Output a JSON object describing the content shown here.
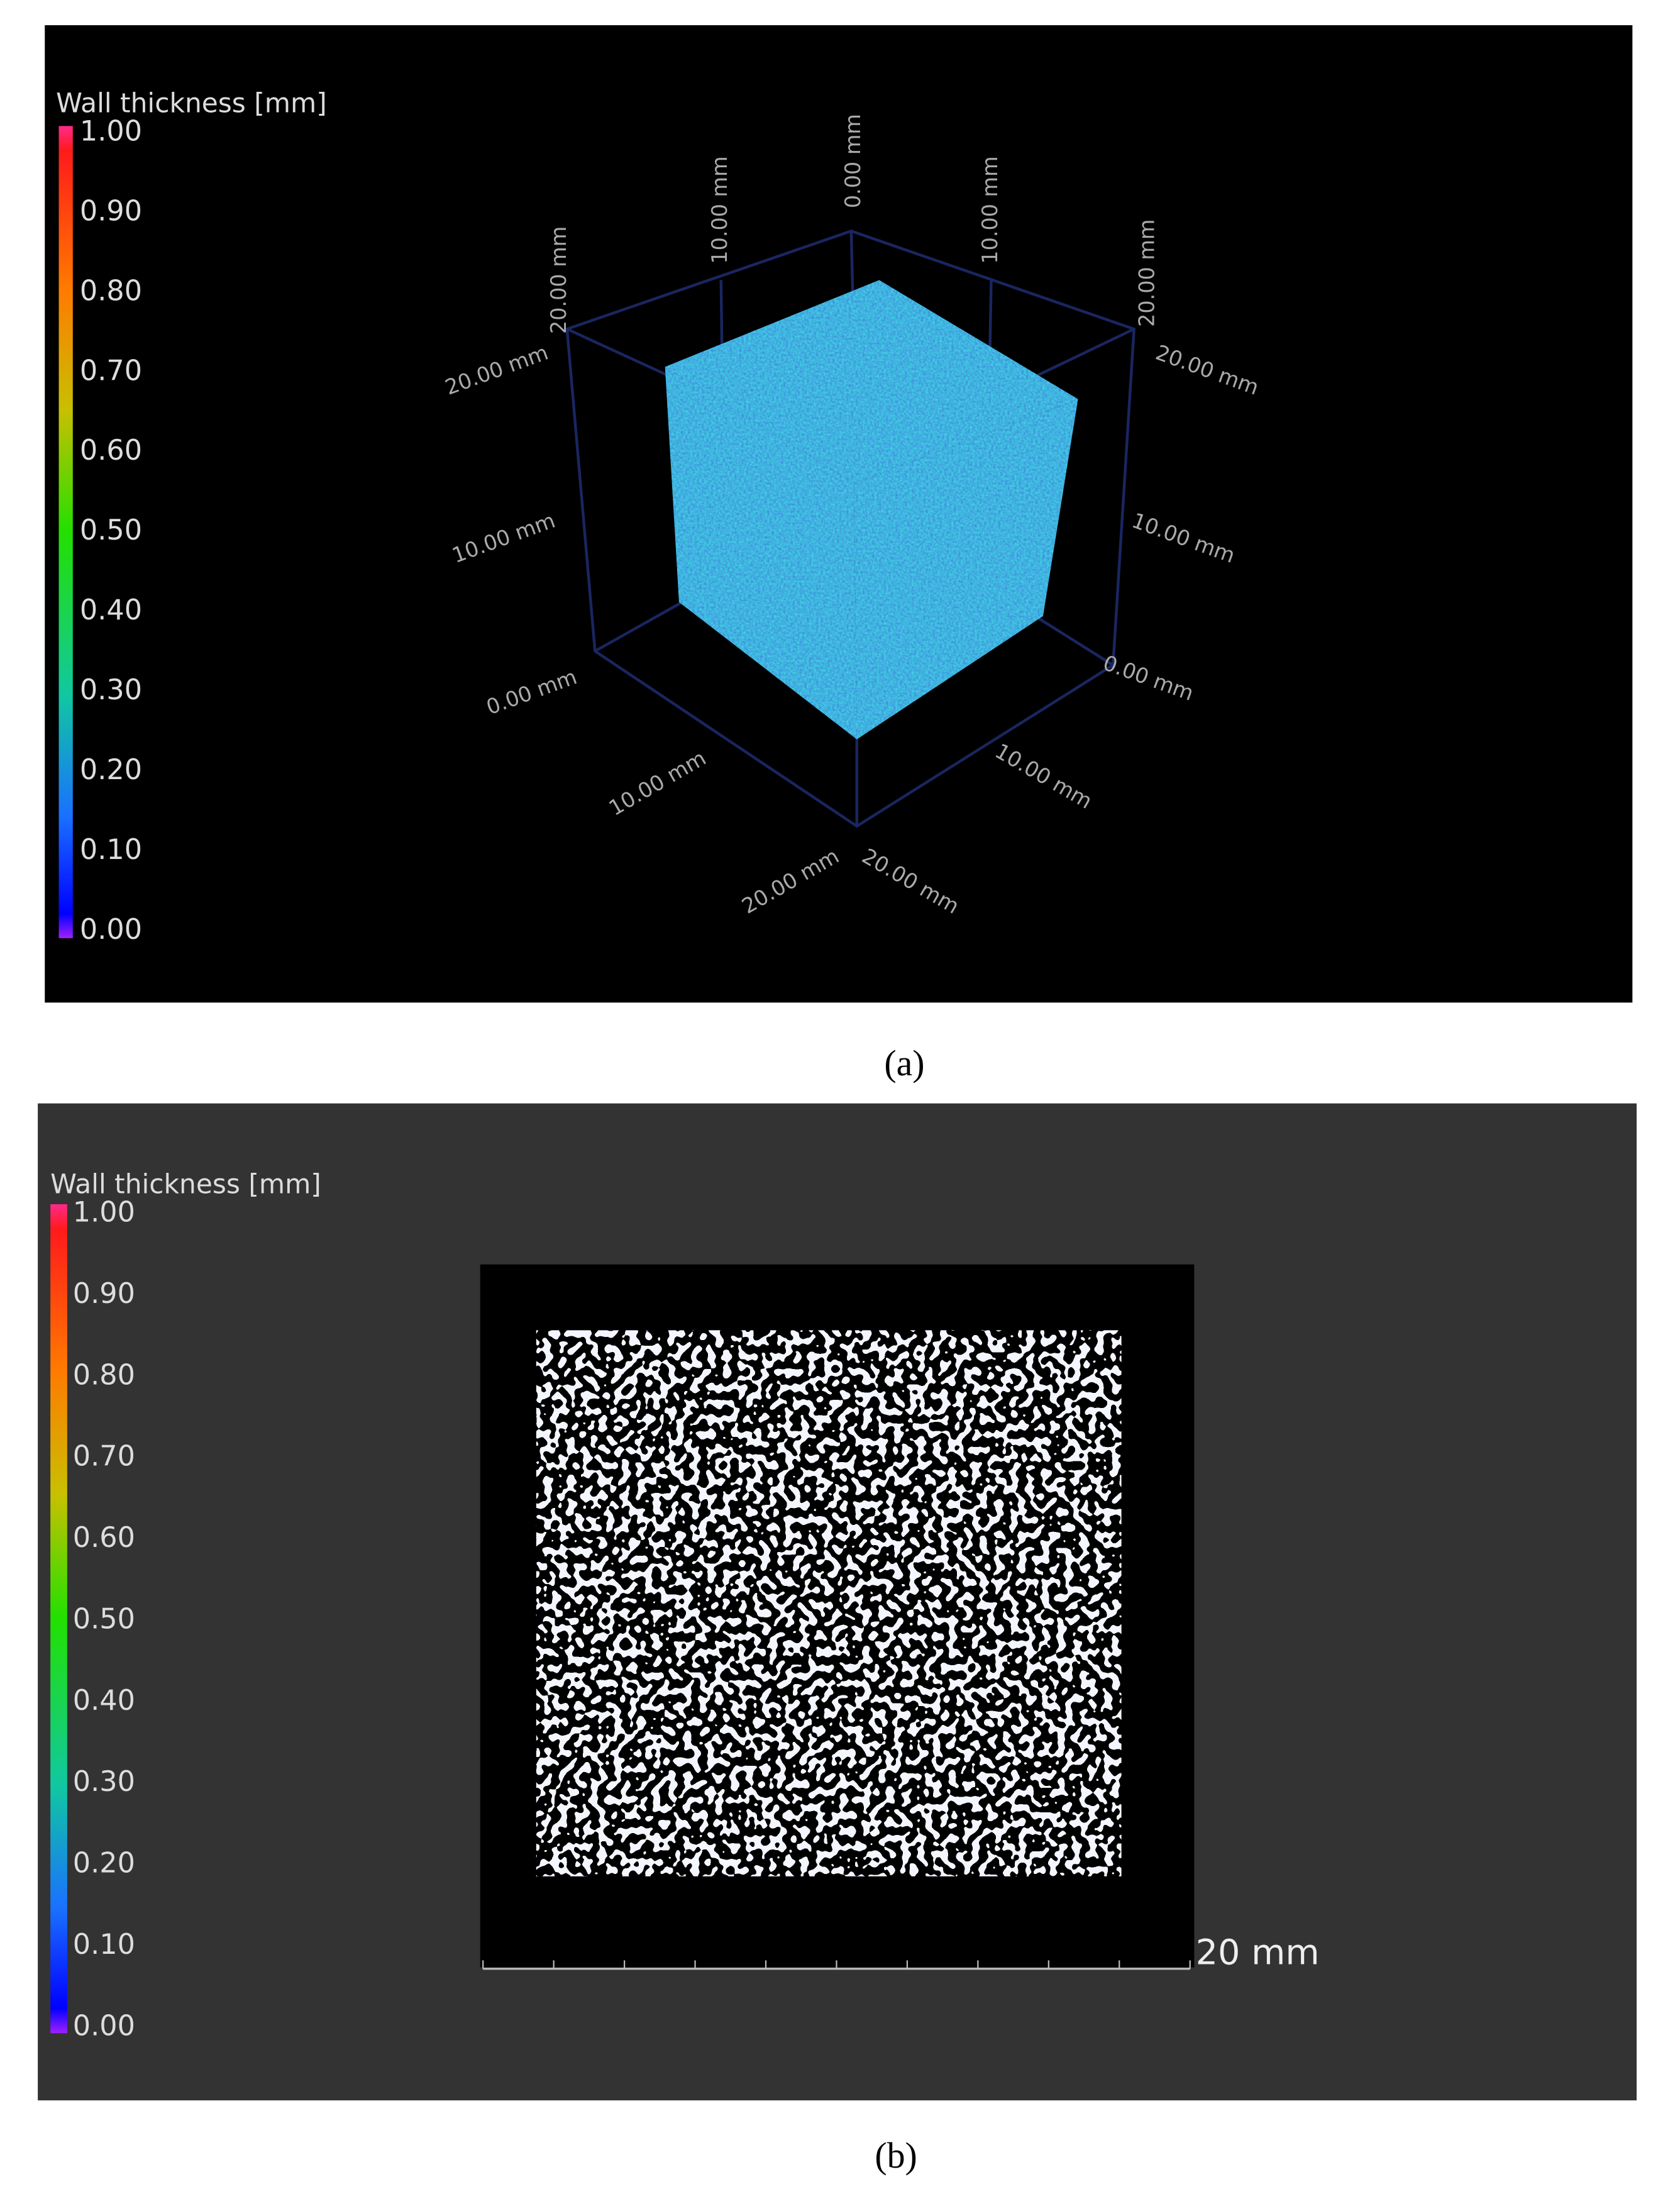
{
  "panels": [
    {
      "legend": {
        "title": "Wall thickness [mm]",
        "ticks": [
          "1.00",
          "0.90",
          "0.80",
          "0.70",
          "0.60",
          "0.50",
          "0.40",
          "0.30",
          "0.20",
          "0.10",
          "0.00"
        ]
      },
      "axis_labels": [
        "20.00 mm",
        "20.00 mm",
        "10.00 mm",
        "0.00 mm",
        "10.00 mm",
        "20.00 mm",
        "20.00 mm",
        "10.00 mm",
        "10.00 mm",
        "0.00 mm",
        "0.00 mm",
        "10.00 mm",
        "10.00 mm",
        "20.00 mm",
        "20.00 mm"
      ],
      "caption": "(a)"
    },
    {
      "legend": {
        "title": "Wall thickness [mm]",
        "ticks": [
          "1.00",
          "0.90",
          "0.80",
          "0.70",
          "0.60",
          "0.50",
          "0.40",
          "0.30",
          "0.20",
          "0.10",
          "0.00"
        ]
      },
      "scale_bar": "20 mm",
      "caption": "(b)"
    }
  ]
}
